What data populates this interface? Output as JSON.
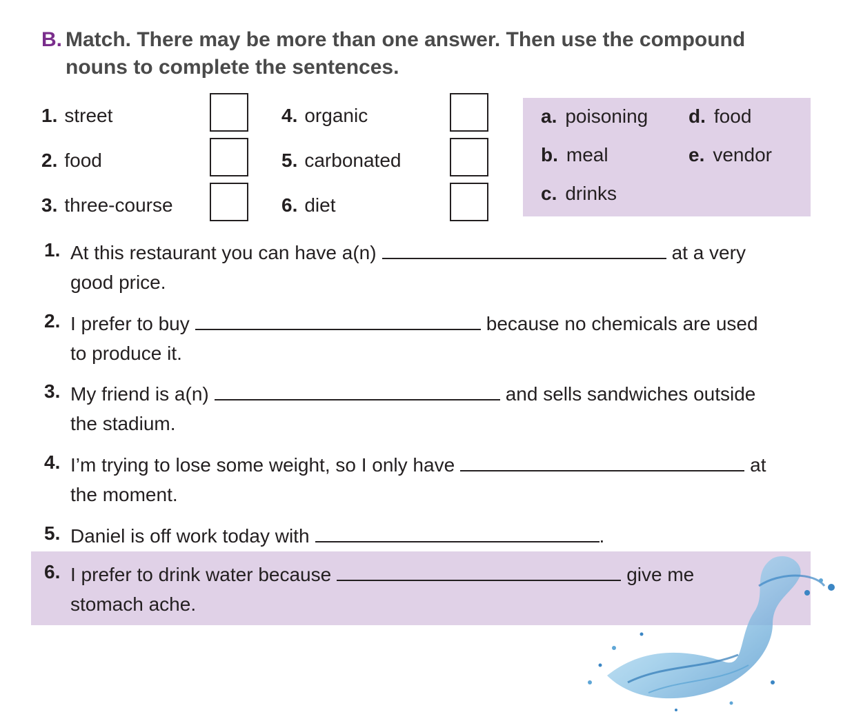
{
  "section": {
    "letter": "B.",
    "instruction_line1": "Match. There may be more than one answer. Then use the compound",
    "instruction_line2": "nouns to complete the sentences."
  },
  "match_words": [
    {
      "num": "1.",
      "word": "street"
    },
    {
      "num": "2.",
      "word": "food"
    },
    {
      "num": "3.",
      "word": "three-course"
    },
    {
      "num": "4.",
      "word": "organic"
    },
    {
      "num": "5.",
      "word": "carbonated"
    },
    {
      "num": "6.",
      "word": "diet"
    }
  ],
  "options": [
    {
      "letter": "a.",
      "word": "poisoning"
    },
    {
      "letter": "b.",
      "word": "meal"
    },
    {
      "letter": "c.",
      "word": "drinks"
    },
    {
      "letter": "d.",
      "word": "food"
    },
    {
      "letter": "e.",
      "word": "vendor"
    }
  ],
  "sentences": [
    {
      "num": "1.",
      "before": "At this restaurant you can have a(n)",
      "after": "at a very",
      "line2": "good price."
    },
    {
      "num": "2.",
      "before": "I prefer to buy",
      "after": "because no chemicals are used",
      "line2": "to produce it."
    },
    {
      "num": "3.",
      "before": "My friend is a(n)",
      "after": "and sells sandwiches outside",
      "line2": "the stadium."
    },
    {
      "num": "4.",
      "before": "I’m trying to lose some weight, so I only have",
      "after": "at",
      "line2": "the moment."
    },
    {
      "num": "5.",
      "before": "Daniel is off work today with",
      "after": ".",
      "line2": ""
    },
    {
      "num": "6.",
      "before": "I prefer to drink water because",
      "after": "give me",
      "line2": "stomach ache."
    }
  ],
  "colors": {
    "accent": "#7a2e8c",
    "panel": "#e0d1e7",
    "heading": "#4a4a4a"
  }
}
